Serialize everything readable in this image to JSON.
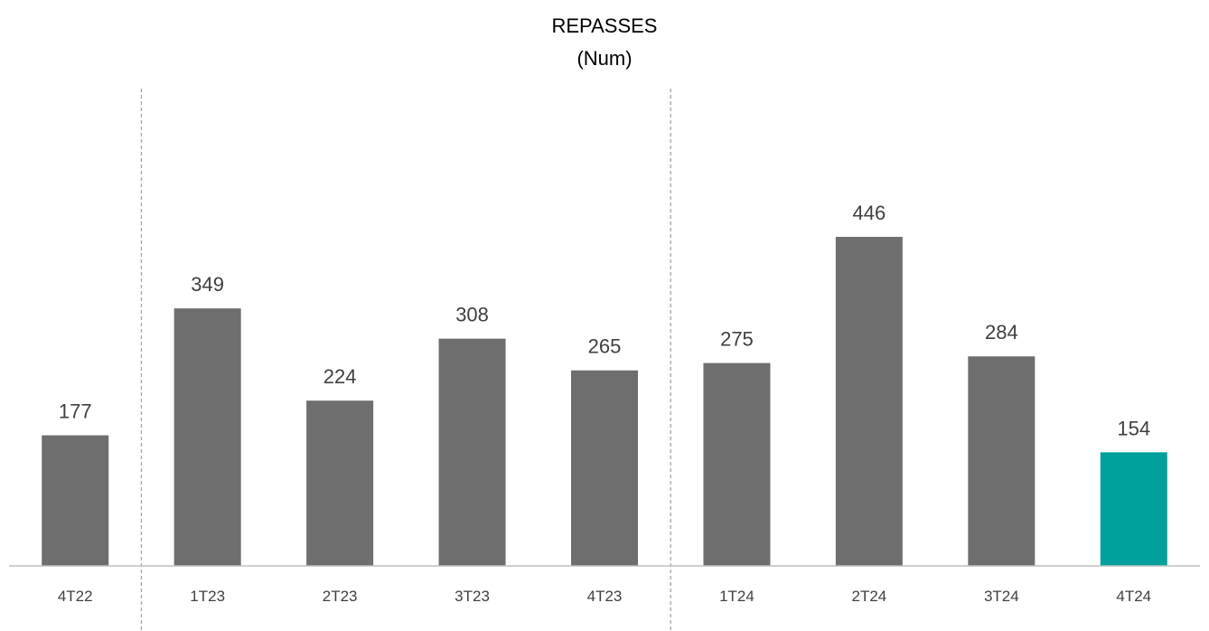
{
  "chart_data": {
    "type": "bar",
    "title": "REPASSES",
    "subtitle": "(Num)",
    "categories": [
      "4T22",
      "1T23",
      "2T23",
      "3T23",
      "4T23",
      "1T24",
      "2T24",
      "3T24",
      "4T24"
    ],
    "values": [
      177,
      349,
      224,
      308,
      265,
      275,
      446,
      284,
      154
    ],
    "highlight_index": 8,
    "ylim": [
      0,
      446
    ],
    "grid": false,
    "legend": "none",
    "separators_after": [
      "4T22",
      "4T23"
    ],
    "colors": {
      "bar": "#6e6e6e",
      "highlight": "#00a19c",
      "baseline": "#bfbfbf",
      "separator": "#a6a6a6",
      "value_label": "#404040",
      "tick_label": "#404040"
    }
  }
}
